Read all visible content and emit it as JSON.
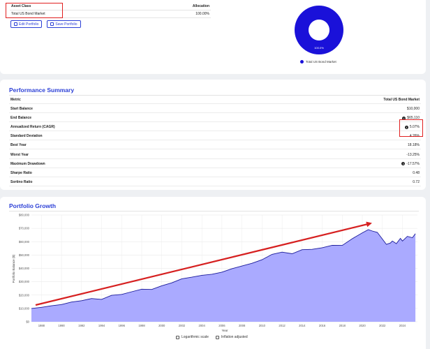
{
  "allocation": {
    "header_class": "Asset Class",
    "header_alloc": "Allocation",
    "row_name": "Total US Bond Market",
    "row_value": "100.00%",
    "edit_label": "Edit Portfolio",
    "save_label": "Save Portfolio",
    "donut_label": "100.0%",
    "legend_label": "Total US Bond Market",
    "donut_color": "#1a11d9"
  },
  "performance": {
    "title": "Performance Summary",
    "metric_header": "Metric",
    "value_header": "Total US Bond Market",
    "rows": [
      {
        "label": "Start Balance",
        "value": "$10,000",
        "info": false
      },
      {
        "label": "End Balance",
        "value": "$65,110",
        "info": true
      },
      {
        "label": "Annualized Return (CAGR)",
        "value": "5.07%",
        "info": true
      },
      {
        "label": "Standard Deviation",
        "value": "4.26%",
        "info": false
      },
      {
        "label": "Best Year",
        "value": "18.18%",
        "info": false
      },
      {
        "label": "Worst Year",
        "value": "-13.25%",
        "info": false
      },
      {
        "label": "Maximum Drawdown",
        "value": "-17.57%",
        "info": true
      },
      {
        "label": "Sharpe Ratio",
        "value": "0.48",
        "info": false
      },
      {
        "label": "Sortino Ratio",
        "value": "0.72",
        "info": false
      }
    ]
  },
  "growth": {
    "title": "Portfolio Growth",
    "log_label": "Logarithmic scale",
    "inflation_label": "Inflation adjusted"
  },
  "chart_data": {
    "type": "area",
    "title": "",
    "xlabel": "Year",
    "ylabel": "Portfolio Balance ($)",
    "ylim": [
      0,
      80000
    ],
    "xlim": [
      1987,
      2025.5
    ],
    "y_ticks": [
      "$0",
      "$10,000",
      "$20,000",
      "$30,000",
      "$40,000",
      "$50,000",
      "$60,000",
      "$70,000",
      "$80,000"
    ],
    "x_ticks": [
      "1988",
      "1990",
      "1992",
      "1994",
      "1996",
      "1998",
      "2000",
      "2002",
      "2004",
      "2006",
      "2008",
      "2010",
      "2012",
      "2014",
      "2016",
      "2018",
      "2020",
      "2022",
      "2024"
    ],
    "grid": true,
    "fill_color": "#aaaaff",
    "line_color": "#1a1a9a",
    "annotation_color": "#d62020",
    "series": [
      {
        "x": [
          1987.0,
          1988,
          1989,
          1990,
          1991,
          1992,
          1993,
          1994,
          1995,
          1996,
          1997,
          1998,
          1999,
          2000,
          2001,
          2002,
          2003,
          2004,
          2005,
          2006,
          2007,
          2008,
          2009,
          2010,
          2011,
          2012,
          2013,
          2014,
          2015,
          2016,
          2017,
          2018,
          2019,
          2020,
          2020.6,
          2021,
          2021.5,
          2022,
          2022.4,
          2022.8,
          2023,
          2023.4,
          2023.8,
          2024,
          2024.5,
          2025,
          2025.3
        ],
        "y": [
          10000,
          10800,
          12000,
          12900,
          14800,
          15800,
          17400,
          16800,
          19800,
          20500,
          22500,
          24400,
          24200,
          27000,
          29200,
          32200,
          33400,
          34800,
          35600,
          37200,
          39800,
          41800,
          43800,
          46500,
          50500,
          52200,
          51000,
          54000,
          54300,
          55500,
          57300,
          57200,
          62200,
          66600,
          69000,
          68000,
          67000,
          62000,
          58000,
          59000,
          60500,
          58500,
          62500,
          60500,
          64000,
          63000,
          66000
        ]
      }
    ]
  }
}
